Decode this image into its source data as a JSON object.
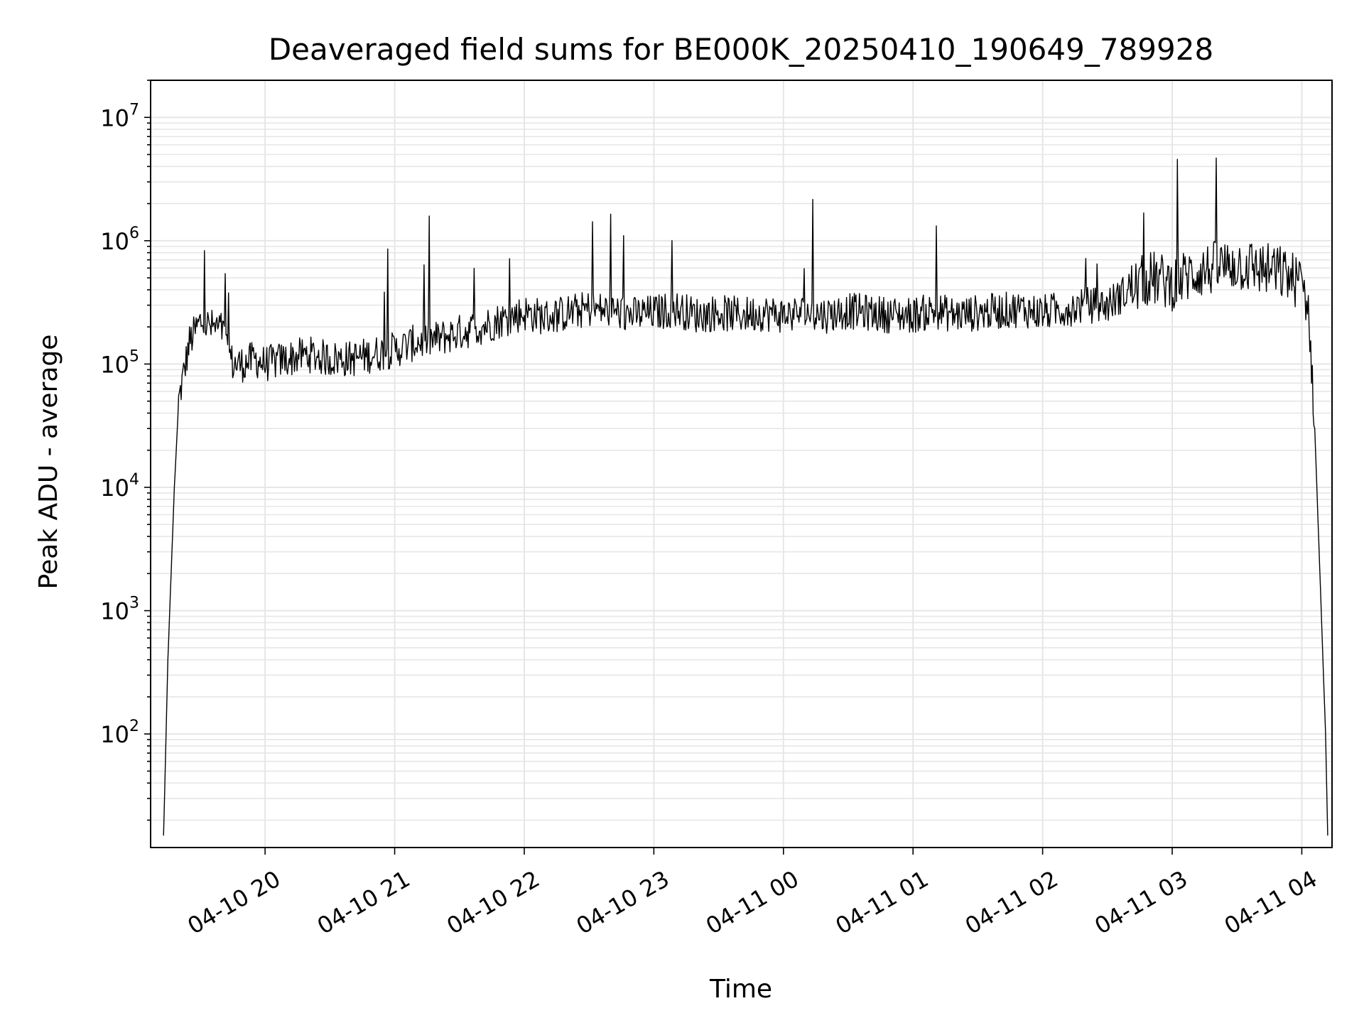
{
  "chart_data": {
    "type": "line",
    "title": "Deaveraged field sums for BE000K_20250410_190649_789928",
    "xlabel": "Time",
    "ylabel": "Peak ADU - average",
    "yscale": "log",
    "ylim": [
      12,
      20000000
    ],
    "xlim": [
      "04-10 19:07",
      "04-11 04:14"
    ],
    "grid": true,
    "line_color": "#000000",
    "grid_color": "#e6e6e6",
    "x_ticks": [
      "04-10 20",
      "04-10 21",
      "04-10 22",
      "04-10 23",
      "04-11 00",
      "04-11 01",
      "04-11 02",
      "04-11 03",
      "04-11 04"
    ],
    "y_ticks": [
      {
        "base": "10",
        "exp": "2",
        "value": 100
      },
      {
        "base": "10",
        "exp": "3",
        "value": 1000
      },
      {
        "base": "10",
        "exp": "4",
        "value": 10000
      },
      {
        "base": "10",
        "exp": "5",
        "value": 100000
      },
      {
        "base": "10",
        "exp": "6",
        "value": 1000000
      },
      {
        "base": "10",
        "exp": "7",
        "value": 10000000
      }
    ],
    "series": [
      {
        "x": [
          "04-10 19:13",
          "04-10 19:15",
          "04-10 19:18",
          "04-10 19:20",
          "04-10 19:25",
          "04-10 19:30",
          "04-10 19:35",
          "04-10 19:40",
          "04-10 19:45",
          "04-10 19:50",
          "04-10 19:55",
          "04-10 20:00",
          "04-10 20:10",
          "04-10 20:20",
          "04-10 20:30",
          "04-10 20:40",
          "04-10 20:50",
          "04-10 21:00",
          "04-10 21:10",
          "04-10 21:20",
          "04-10 21:30",
          "04-10 21:40",
          "04-10 21:50",
          "04-10 22:00",
          "04-10 22:10",
          "04-10 22:20",
          "04-10 22:30",
          "04-10 22:40",
          "04-10 22:50",
          "04-10 23:00",
          "04-10 23:10",
          "04-10 23:20",
          "04-10 23:30",
          "04-10 23:40",
          "04-10 23:50",
          "04-11 00:00",
          "04-11 00:10",
          "04-11 00:20",
          "04-11 00:30",
          "04-11 00:40",
          "04-11 00:50",
          "04-11 01:00",
          "04-11 01:10",
          "04-11 01:20",
          "04-11 01:30",
          "04-11 01:40",
          "04-11 01:50",
          "04-11 02:00",
          "04-11 02:10",
          "04-11 02:20",
          "04-11 02:30",
          "04-11 02:40",
          "04-11 02:50",
          "04-11 03:00",
          "04-11 03:10",
          "04-11 03:20",
          "04-11 03:30",
          "04-11 03:40",
          "04-11 03:50",
          "04-11 03:55",
          "04-11 04:00",
          "04-11 04:03",
          "04-11 04:06",
          "04-11 04:09",
          "04-11 04:11",
          "04-11 04:12"
        ],
        "y": [
          15,
          400,
          10000,
          50000,
          150000,
          220000,
          200000,
          190000,
          100000,
          100000,
          110000,
          100000,
          110000,
          120000,
          110000,
          110000,
          120000,
          130000,
          150000,
          160000,
          180000,
          200000,
          230000,
          260000,
          240000,
          260000,
          280000,
          270000,
          250000,
          260000,
          280000,
          250000,
          260000,
          250000,
          260000,
          250000,
          260000,
          250000,
          270000,
          260000,
          250000,
          250000,
          270000,
          250000,
          260000,
          270000,
          280000,
          260000,
          280000,
          300000,
          300000,
          400000,
          500000,
          450000,
          550000,
          600000,
          650000,
          600000,
          550000,
          500000,
          450000,
          300000,
          30000,
          1000,
          100,
          15
        ]
      }
    ]
  }
}
